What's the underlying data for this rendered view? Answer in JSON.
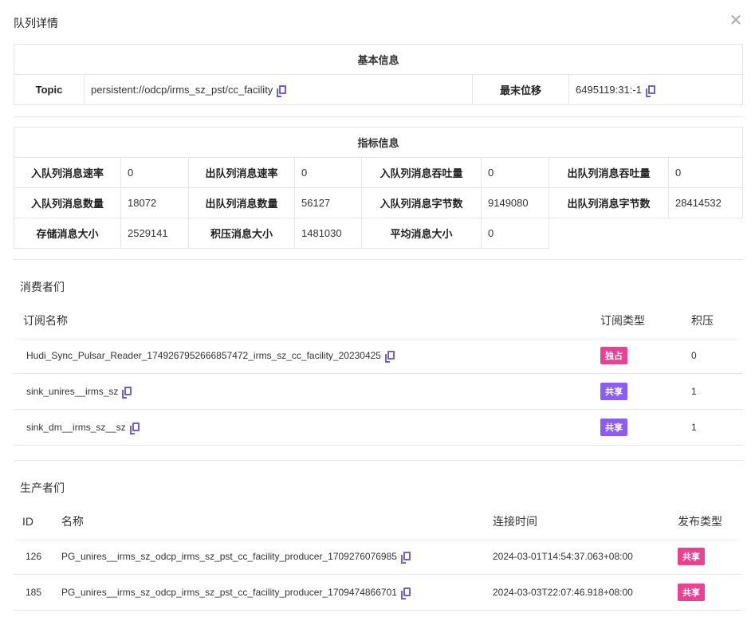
{
  "title": "队列详情",
  "basic": {
    "caption": "基本信息",
    "topic_label": "Topic",
    "topic_value": "persistent://odcp/irms_sz_pst/cc_facility",
    "offset_label": "最末位移",
    "offset_value": "6495119:31:-1"
  },
  "metrics": {
    "caption": "指标信息",
    "rows": [
      [
        {
          "k": "入队列消息速率",
          "v": "0"
        },
        {
          "k": "出队列消息速率",
          "v": "0"
        },
        {
          "k": "入队列消息吞吐量",
          "v": "0"
        },
        {
          "k": "出队列消息吞吐量",
          "v": "0"
        }
      ],
      [
        {
          "k": "入队列消息数量",
          "v": "18072"
        },
        {
          "k": "出队列消息数量",
          "v": "56127"
        },
        {
          "k": "入队列消息字节数",
          "v": "9149080"
        },
        {
          "k": "出队列消息字节数",
          "v": "28414532"
        }
      ],
      [
        {
          "k": "存储消息大小",
          "v": "2529141"
        },
        {
          "k": "积压消息大小",
          "v": "1481030"
        },
        {
          "k": "平均消息大小",
          "v": "0"
        }
      ]
    ]
  },
  "consumers": {
    "title": "消费者们",
    "headers": [
      "订阅名称",
      "订阅类型",
      "积压"
    ],
    "rows": [
      {
        "name": "Hudi_Sync_Pulsar_Reader_1749267952666857472_irms_sz_cc_facility_20230425",
        "type": "独占",
        "type_color": "#e84393",
        "backlog": "0"
      },
      {
        "name": "sink_unires__irms_sz",
        "type": "共享",
        "type_color": "#8b5cf6",
        "backlog": "1"
      },
      {
        "name": "sink_dm__irms_sz__sz",
        "type": "共享",
        "type_color": "#8b5cf6",
        "backlog": "1"
      }
    ]
  },
  "producers": {
    "title": "生产者们",
    "headers": [
      "ID",
      "名称",
      "连接时间",
      "发布类型"
    ],
    "rows": [
      {
        "id": "126",
        "name": "PG_unires__irms_sz_odcp_irms_sz_pst_cc_facility_producer_1709276076985",
        "time": "2024-03-01T14:54:37.063+08:00",
        "type": "共享",
        "type_color": "#e84393"
      },
      {
        "id": "185",
        "name": "PG_unires__irms_sz_odcp_irms_sz_pst_cc_facility_producer_1709474866701",
        "time": "2024-03-03T22:07:46.918+08:00",
        "type": "共享",
        "type_color": "#e84393"
      }
    ]
  }
}
